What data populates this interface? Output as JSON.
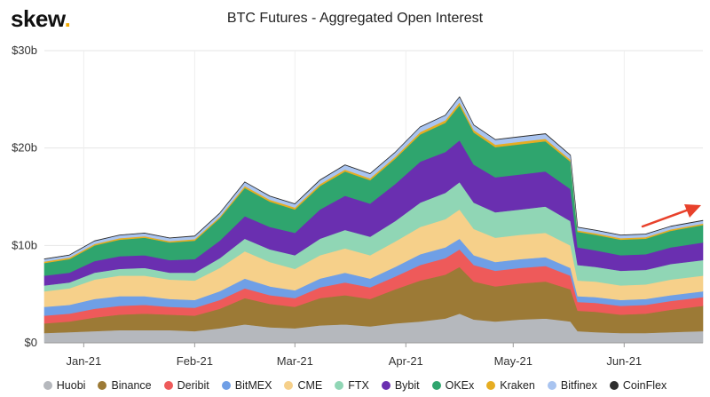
{
  "header": {
    "logo": "skew",
    "logo_dot": ".",
    "title": "BTC Futures - Aggregated Open Interest"
  },
  "watermark": "skew",
  "annotation": {
    "type": "arrow",
    "color": "#e8412b",
    "direction": "up-right"
  },
  "chart_data": {
    "type": "area",
    "stacked": true,
    "title": "BTC Futures - Aggregated Open Interest",
    "xlabel": "",
    "ylabel": "",
    "y_unit": "USD",
    "ylim": [
      0,
      30
    ],
    "yticks": [
      {
        "value": 0,
        "label": "$0"
      },
      {
        "value": 10,
        "label": "$10b"
      },
      {
        "value": 20,
        "label": "$20b"
      },
      {
        "value": 30,
        "label": "$30b"
      }
    ],
    "xrange": [
      "2020-12-21",
      "2021-06-23"
    ],
    "xticks": [
      {
        "date": "2021-01-01",
        "label": "Jan-21"
      },
      {
        "date": "2021-02-01",
        "label": "Feb-21"
      },
      {
        "date": "2021-03-01",
        "label": "Mar-21"
      },
      {
        "date": "2021-04-01",
        "label": "Apr-21"
      },
      {
        "date": "2021-05-01",
        "label": "May-21"
      },
      {
        "date": "2021-06-01",
        "label": "Jun-21"
      }
    ],
    "grid": true,
    "legend_position": "bottom",
    "x": [
      "2020-12-21",
      "2020-12-28",
      "2021-01-04",
      "2021-01-11",
      "2021-01-18",
      "2021-01-25",
      "2021-02-01",
      "2021-02-08",
      "2021-02-15",
      "2021-02-22",
      "2021-03-01",
      "2021-03-08",
      "2021-03-15",
      "2021-03-22",
      "2021-03-29",
      "2021-04-05",
      "2021-04-12",
      "2021-04-16",
      "2021-04-20",
      "2021-04-26",
      "2021-05-03",
      "2021-05-10",
      "2021-05-17",
      "2021-05-19",
      "2021-05-24",
      "2021-05-31",
      "2021-06-07",
      "2021-06-14",
      "2021-06-23"
    ],
    "series": [
      {
        "name": "Huobi",
        "color": "#b5b8bd",
        "values": [
          1.0,
          1.1,
          1.2,
          1.3,
          1.3,
          1.3,
          1.2,
          1.5,
          1.9,
          1.6,
          1.5,
          1.8,
          1.9,
          1.7,
          2.0,
          2.2,
          2.5,
          3.0,
          2.4,
          2.2,
          2.4,
          2.5,
          2.2,
          1.2,
          1.1,
          1.0,
          1.0,
          1.1,
          1.2
        ]
      },
      {
        "name": "Binance",
        "color": "#9c7a36",
        "values": [
          1.0,
          1.1,
          1.4,
          1.6,
          1.7,
          1.6,
          1.6,
          2.0,
          2.7,
          2.4,
          2.2,
          2.8,
          3.0,
          2.8,
          3.5,
          4.2,
          4.5,
          4.8,
          3.9,
          3.6,
          3.7,
          3.8,
          3.3,
          2.1,
          2.1,
          1.9,
          2.0,
          2.3,
          2.6
        ]
      },
      {
        "name": "Deribit",
        "color": "#ee5a5a",
        "values": [
          0.8,
          0.8,
          0.9,
          0.9,
          0.9,
          0.8,
          0.8,
          0.9,
          1.0,
          0.9,
          0.9,
          1.1,
          1.3,
          1.2,
          1.3,
          1.6,
          1.7,
          1.8,
          1.7,
          1.6,
          1.6,
          1.6,
          1.4,
          0.9,
          0.9,
          0.9,
          0.9,
          0.9,
          0.9
        ]
      },
      {
        "name": "BitMEX",
        "color": "#6f9fe6",
        "values": [
          0.9,
          0.9,
          1.0,
          1.0,
          0.9,
          0.8,
          0.8,
          0.9,
          1.0,
          0.9,
          0.8,
          0.9,
          1.0,
          0.9,
          1.0,
          1.1,
          1.1,
          1.1,
          1.0,
          0.9,
          0.9,
          0.9,
          0.8,
          0.6,
          0.6,
          0.6,
          0.6,
          0.6,
          0.6
        ]
      },
      {
        "name": "CME",
        "color": "#f6d08a",
        "values": [
          1.6,
          1.7,
          2.0,
          2.1,
          2.1,
          2.0,
          2.0,
          2.4,
          2.8,
          2.5,
          2.2,
          2.4,
          2.5,
          2.4,
          2.6,
          2.8,
          2.9,
          3.0,
          2.7,
          2.5,
          2.5,
          2.5,
          2.3,
          1.6,
          1.6,
          1.5,
          1.5,
          1.6,
          1.6
        ]
      },
      {
        "name": "FTX",
        "color": "#90d6b5",
        "values": [
          0.6,
          0.6,
          0.7,
          0.7,
          0.8,
          0.7,
          0.8,
          1.0,
          1.3,
          1.3,
          1.4,
          1.7,
          1.9,
          1.9,
          2.1,
          2.5,
          2.7,
          2.8,
          2.7,
          2.6,
          2.6,
          2.7,
          2.5,
          1.6,
          1.5,
          1.5,
          1.5,
          1.6,
          1.6
        ]
      },
      {
        "name": "Bybit",
        "color": "#6a2fb0",
        "values": [
          1.0,
          1.0,
          1.2,
          1.3,
          1.3,
          1.3,
          1.4,
          1.8,
          2.3,
          2.3,
          2.3,
          3.0,
          3.5,
          3.4,
          3.8,
          4.2,
          4.2,
          4.3,
          3.9,
          3.6,
          3.6,
          3.6,
          3.3,
          1.8,
          1.7,
          1.6,
          1.6,
          1.7,
          1.8
        ]
      },
      {
        "name": "OKEx",
        "color": "#2fa56e",
        "values": [
          1.3,
          1.4,
          1.6,
          1.7,
          1.8,
          1.8,
          1.9,
          2.3,
          2.9,
          2.6,
          2.4,
          2.4,
          2.5,
          2.4,
          2.6,
          2.8,
          3.0,
          3.6,
          3.3,
          3.1,
          3.1,
          3.1,
          2.8,
          1.6,
          1.6,
          1.6,
          1.6,
          1.7,
          1.8
        ]
      },
      {
        "name": "Kraken",
        "color": "#e6ad22",
        "values": [
          0.15,
          0.15,
          0.15,
          0.15,
          0.15,
          0.15,
          0.15,
          0.15,
          0.2,
          0.2,
          0.2,
          0.2,
          0.2,
          0.2,
          0.2,
          0.25,
          0.25,
          0.3,
          0.25,
          0.25,
          0.25,
          0.25,
          0.2,
          0.15,
          0.15,
          0.15,
          0.15,
          0.15,
          0.15
        ]
      },
      {
        "name": "Bitfinex",
        "color": "#a9c4f0",
        "values": [
          0.25,
          0.25,
          0.3,
          0.3,
          0.3,
          0.3,
          0.3,
          0.35,
          0.4,
          0.35,
          0.35,
          0.4,
          0.45,
          0.45,
          0.45,
          0.5,
          0.5,
          0.55,
          0.5,
          0.5,
          0.5,
          0.5,
          0.45,
          0.3,
          0.3,
          0.3,
          0.3,
          0.3,
          0.3
        ]
      },
      {
        "name": "CoinFlex",
        "color": "#2d2d2d",
        "values": [
          0.03,
          0.03,
          0.03,
          0.03,
          0.03,
          0.03,
          0.03,
          0.03,
          0.03,
          0.03,
          0.03,
          0.03,
          0.03,
          0.03,
          0.03,
          0.03,
          0.03,
          0.03,
          0.03,
          0.03,
          0.03,
          0.03,
          0.03,
          0.03,
          0.03,
          0.03,
          0.03,
          0.03,
          0.03
        ]
      }
    ]
  }
}
